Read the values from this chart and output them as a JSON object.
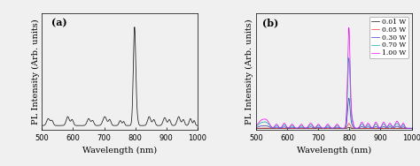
{
  "xlim": [
    500,
    1000
  ],
  "xlabel": "Wavelength (nm)",
  "ylabel": "PL Intensity (Arb. units)",
  "panel_a_label": "(a)",
  "panel_b_label": "(b)",
  "legend_labels": [
    "0.01 W",
    "0.05 W",
    "0.30 W",
    "0.70 W",
    "1.00 W"
  ],
  "legend_colors": [
    "#111111",
    "#ee3333",
    "#3333bb",
    "#00aaaa",
    "#ee00ee"
  ],
  "background_color": "#f0f0f0",
  "tick_fontsize": 6,
  "label_fontsize": 7,
  "legend_fontsize": 5.5,
  "figsize": [
    4.74,
    1.88
  ],
  "dpi": 100
}
